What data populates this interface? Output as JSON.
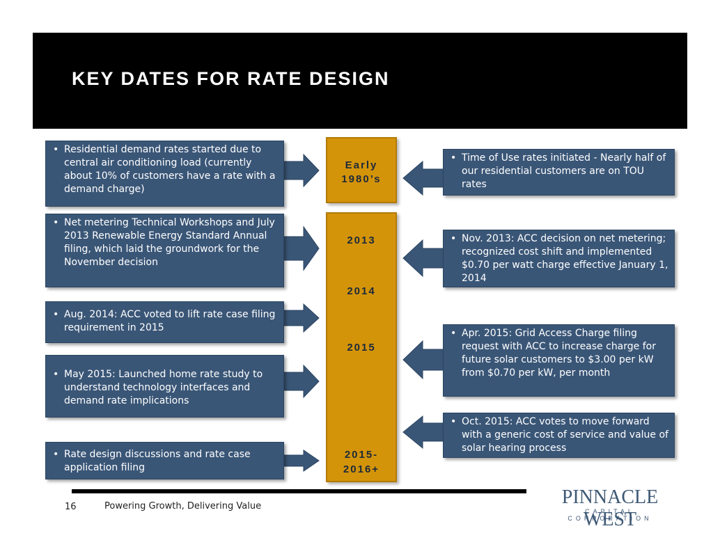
{
  "title": "KEY DATES FOR RATE DESIGN",
  "bullet": "•",
  "colors": {
    "box": "#3a5677",
    "gold": "#d4940a",
    "header": "#000000",
    "logo": "#3e5975"
  },
  "timeline": {
    "early": {
      "line1": "Early",
      "line2": "1980’s"
    },
    "y2013": "2013",
    "y2014": "2014",
    "y2015": "2015",
    "y2015_2016": {
      "line1": "2015-",
      "line2": "2016+"
    }
  },
  "left": [
    "Residential demand rates started due to central air conditioning load (currently about 10% of customers have a rate with a demand charge)",
    "Net metering Technical Workshops and July 2013 Renewable Energy Standard Annual filing, which laid the groundwork for the November decision",
    "Aug. 2014: ACC voted to lift rate case filing requirement in 2015",
    "May 2015: Launched home rate study to understand technology interfaces and demand rate implications",
    "Rate design discussions and rate case application filing"
  ],
  "right": [
    "Time of Use rates initiated - Nearly half of our residential customers are on TOU rates",
    "Nov. 2013: ACC decision on net metering; recognized cost shift and implemented $0.70 per watt charge effective January 1, 2014",
    "Apr. 2015: Grid Access Charge filing request with ACC to increase charge for future solar customers to $3.00 per kW from $0.70 per kW, per month",
    "Oct.  2015: ACC votes to move forward with a generic cost of service and value of solar hearing process"
  ],
  "footer": {
    "page_number": "16",
    "tagline": "Powering Growth, Delivering Value",
    "logo_main": "PINNACLE WEST",
    "logo_sub": "CAPITAL CORPORATION"
  }
}
